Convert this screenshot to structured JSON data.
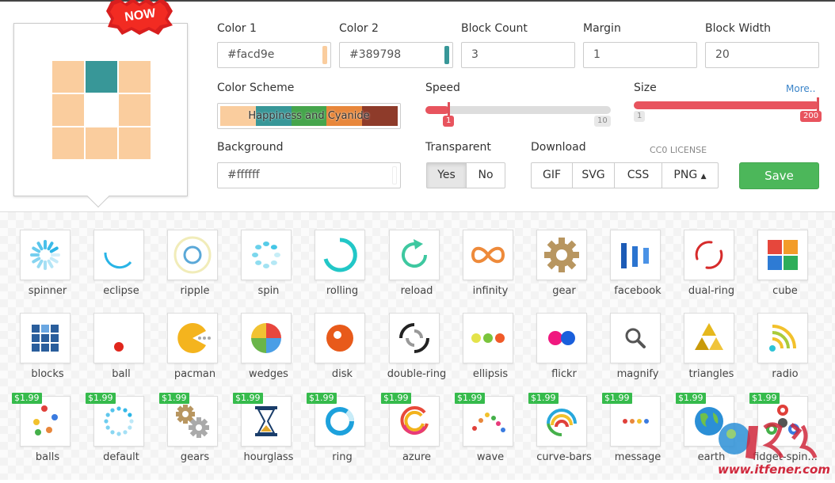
{
  "badge": {
    "text": "NOW"
  },
  "preview": {
    "color1": "#facd9e",
    "color2": "#389798",
    "active_block": 1
  },
  "fields": {
    "color1": {
      "label": "Color 1",
      "value": "#facd9e",
      "swatch": "#facd9e"
    },
    "color2": {
      "label": "Color 2",
      "value": "#389798",
      "swatch": "#389798"
    },
    "block_count": {
      "label": "Block Count",
      "value": "3"
    },
    "margin": {
      "label": "Margin",
      "value": "1"
    },
    "block_width": {
      "label": "Block Width",
      "value": "20"
    },
    "background": {
      "label": "Background",
      "value": "#ffffff"
    }
  },
  "color_scheme": {
    "label": "Color Scheme",
    "name": "Happiness and Cyanide",
    "colors": [
      "#facd9e",
      "#389798",
      "#46a54c",
      "#e8873b",
      "#8e3b2a"
    ]
  },
  "speed": {
    "label": "Speed",
    "min": "1",
    "max": "10",
    "value": 1
  },
  "size": {
    "label": "Size",
    "min": "1",
    "max": "200",
    "value": 200,
    "more": "More.."
  },
  "transparent": {
    "label": "Transparent",
    "yes": "Yes",
    "no": "No",
    "selected": "Yes"
  },
  "download": {
    "label": "Download",
    "license": "CC0 LICENSE",
    "options": [
      "GIF",
      "SVG",
      "CSS",
      "PNG"
    ],
    "caret_icon": "caret-up-icon"
  },
  "save_label": "Save",
  "loaders": [
    {
      "name": "spinner",
      "icon": "spinner-icon"
    },
    {
      "name": "eclipse",
      "icon": "eclipse-icon"
    },
    {
      "name": "ripple",
      "icon": "ripple-icon"
    },
    {
      "name": "spin",
      "icon": "spin-icon"
    },
    {
      "name": "rolling",
      "icon": "rolling-icon"
    },
    {
      "name": "reload",
      "icon": "reload-icon"
    },
    {
      "name": "infinity",
      "icon": "infinity-icon"
    },
    {
      "name": "gear",
      "icon": "gear-icon"
    },
    {
      "name": "facebook",
      "icon": "facebook-icon"
    },
    {
      "name": "dual-ring",
      "icon": "dual-ring-icon"
    },
    {
      "name": "cube",
      "icon": "cube-icon"
    },
    {
      "name": "blocks",
      "icon": "blocks-icon"
    },
    {
      "name": "ball",
      "icon": "ball-icon"
    },
    {
      "name": "pacman",
      "icon": "pacman-icon"
    },
    {
      "name": "wedges",
      "icon": "wedges-icon"
    },
    {
      "name": "disk",
      "icon": "disk-icon"
    },
    {
      "name": "double-ring",
      "icon": "double-ring-icon"
    },
    {
      "name": "ellipsis",
      "icon": "ellipsis-icon"
    },
    {
      "name": "flickr",
      "icon": "flickr-icon"
    },
    {
      "name": "magnify",
      "icon": "magnify-icon"
    },
    {
      "name": "triangles",
      "icon": "triangles-icon"
    },
    {
      "name": "radio",
      "icon": "radio-icon"
    },
    {
      "name": "balls",
      "icon": "balls-icon",
      "price": "$1.99"
    },
    {
      "name": "default",
      "icon": "default-icon",
      "price": "$1.99"
    },
    {
      "name": "gears",
      "icon": "gears-icon",
      "price": "$1.99"
    },
    {
      "name": "hourglass",
      "icon": "hourglass-icon",
      "price": "$1.99"
    },
    {
      "name": "ring",
      "icon": "ring-icon",
      "price": "$1.99"
    },
    {
      "name": "azure",
      "icon": "azure-icon",
      "price": "$1.99"
    },
    {
      "name": "wave",
      "icon": "wave-icon",
      "price": "$1.99"
    },
    {
      "name": "curve-bars",
      "icon": "curve-bars-icon",
      "price": "$1.99"
    },
    {
      "name": "message",
      "icon": "message-icon",
      "price": "$1.99"
    },
    {
      "name": "earth",
      "icon": "earth-icon",
      "price": "$1.99"
    },
    {
      "name": "fidget-spin...",
      "icon": "fidget-spinner-icon",
      "price": "$1.99"
    }
  ],
  "watermark": {
    "url": "www.itfener.com",
    "logo": "watermark-logo"
  }
}
